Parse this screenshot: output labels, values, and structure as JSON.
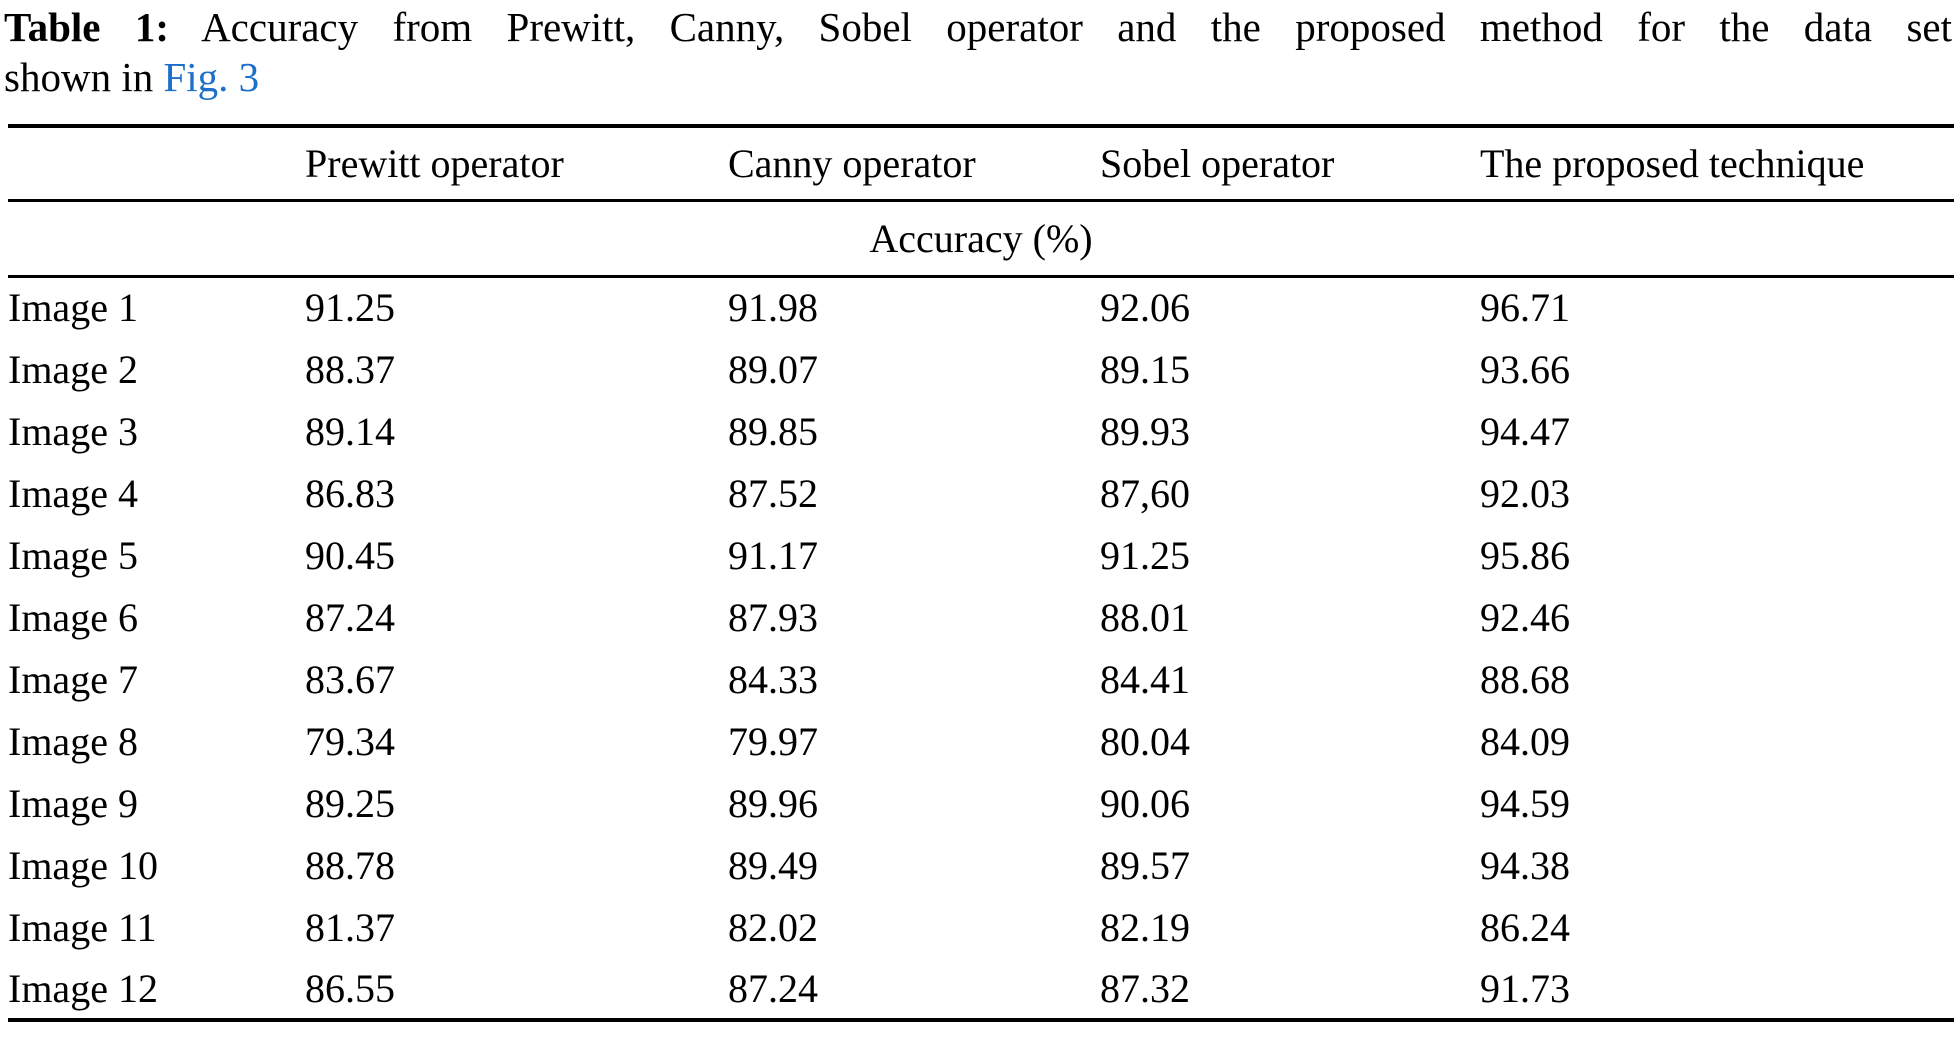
{
  "colors": {
    "background": "#ffffff",
    "text": "#000000",
    "rule": "#000000",
    "link": "#1e6fca"
  },
  "caption": {
    "label": "Table 1:",
    "line1_rest": " Accuracy from Prewitt, Canny, Sobel operator and the proposed method for the data set",
    "line2_prefix": "shown in ",
    "link_text": "Fig. 3"
  },
  "table": {
    "column_headers": [
      "",
      "Prewitt operator",
      "Canny operator",
      "Sobel operator",
      "The proposed technique"
    ],
    "subheader": "Accuracy (%)",
    "rows": [
      {
        "label": "Image 1",
        "values": [
          "91.25",
          "91.98",
          "92.06",
          "96.71"
        ]
      },
      {
        "label": "Image 2",
        "values": [
          "88.37",
          "89.07",
          "89.15",
          "93.66"
        ]
      },
      {
        "label": "Image 3",
        "values": [
          "89.14",
          "89.85",
          "89.93",
          "94.47"
        ]
      },
      {
        "label": "Image 4",
        "values": [
          "86.83",
          "87.52",
          "87,60",
          "92.03"
        ]
      },
      {
        "label": "Image 5",
        "values": [
          "90.45",
          "91.17",
          "91.25",
          "95.86"
        ]
      },
      {
        "label": "Image 6",
        "values": [
          "87.24",
          "87.93",
          "88.01",
          "92.46"
        ]
      },
      {
        "label": "Image 7",
        "values": [
          "83.67",
          "84.33",
          "84.41",
          "88.68"
        ]
      },
      {
        "label": "Image 8",
        "values": [
          "79.34",
          "79.97",
          "80.04",
          "84.09"
        ]
      },
      {
        "label": "Image 9",
        "values": [
          "89.25",
          "89.96",
          "90.06",
          "94.59"
        ]
      },
      {
        "label": "Image 10",
        "values": [
          "88.78",
          "89.49",
          "89.57",
          "94.38"
        ]
      },
      {
        "label": "Image 11",
        "values": [
          "81.37",
          "82.02",
          "82.19",
          "86.24"
        ]
      },
      {
        "label": "Image 12",
        "values": [
          "86.55",
          "87.24",
          "87.32",
          "91.73"
        ]
      }
    ]
  }
}
